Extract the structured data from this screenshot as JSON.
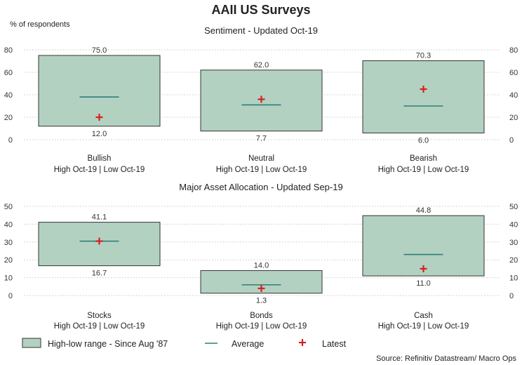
{
  "chart_data": {
    "type": "box",
    "title": "AAII US Surveys",
    "ylabel": "% of respondents",
    "source": "Source: Refinitiv Datastream/ Macro Ops",
    "legend": {
      "range": "High-low range - Since Aug '87",
      "average": "Average",
      "latest": "Latest"
    },
    "colors": {
      "box_fill": "#b3d1c1",
      "box_edge": "#333333",
      "average": "#2e7d7a",
      "latest": "#d62020"
    },
    "panels": [
      {
        "subtitle": "Sentiment - Updated Oct-19",
        "ylim": [
          0,
          80
        ],
        "yticks": [
          0,
          20,
          40,
          60,
          80
        ],
        "categories": [
          {
            "name": "Bullish",
            "note": "High Oct-19 | Low Oct-19",
            "high": 75.0,
            "low": 12.0,
            "high_label": "75.0",
            "low_label": "12.0",
            "average": 38,
            "latest": 20
          },
          {
            "name": "Neutral",
            "note": "High Oct-19 | Low Oct-19",
            "high": 62.0,
            "low": 7.7,
            "high_label": "62.0",
            "low_label": "7.7",
            "average": 31,
            "latest": 36
          },
          {
            "name": "Bearish",
            "note": "High Oct-19 | Low Oct-19",
            "high": 70.3,
            "low": 6.0,
            "high_label": "70.3",
            "low_label": "6.0",
            "average": 30,
            "latest": 45
          }
        ]
      },
      {
        "subtitle": "Major Asset Allocation - Updated Sep-19",
        "ylim": [
          0,
          50
        ],
        "yticks": [
          0,
          10,
          20,
          30,
          40,
          50
        ],
        "categories": [
          {
            "name": "Stocks",
            "note": "High Oct-19 | Low Oct-19",
            "high": 41.1,
            "low": 16.7,
            "high_label": "41.1",
            "low_label": "16.7",
            "average": 30.5,
            "latest": 30.5
          },
          {
            "name": "Bonds",
            "note": "High Oct-19 | Low Oct-19",
            "high": 14.0,
            "low": 1.3,
            "high_label": "14.0",
            "low_label": "1.3",
            "average": 6,
            "latest": 4
          },
          {
            "name": "Cash",
            "note": "High Oct-19 | Low Oct-19",
            "high": 44.8,
            "low": 11.0,
            "high_label": "44.8",
            "low_label": "11.0",
            "average": 23,
            "latest": 15
          }
        ]
      }
    ]
  }
}
